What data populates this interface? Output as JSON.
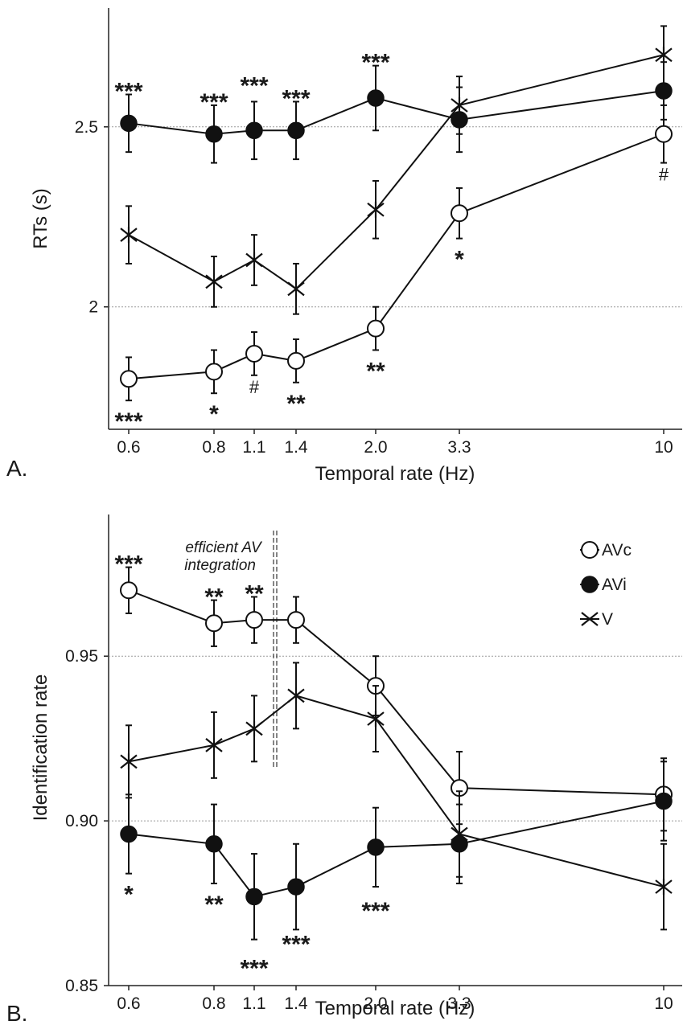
{
  "chart_data": [
    {
      "type": "line",
      "panel_label": "A.",
      "title": "",
      "xlabel": "Temporal rate (Hz)",
      "ylabel": "RTs (s)",
      "x_categories": [
        "0.6",
        "0.8",
        "1.1",
        "1.4",
        "2.0",
        "3.3",
        "10"
      ],
      "ylim": [
        1.66,
        2.83
      ],
      "yticks": [
        "2",
        "2.5"
      ],
      "grid": "dotted horizontal at y ticks",
      "series": [
        {
          "key": "AVi",
          "marker": "filled-circle",
          "values": [
            2.51,
            2.48,
            2.49,
            2.49,
            2.58,
            2.52,
            2.6
          ],
          "err": [
            0.08,
            0.08,
            0.08,
            0.08,
            0.09,
            0.09,
            0.08
          ],
          "labels": [
            "***",
            "***",
            "***",
            "***",
            "***",
            "",
            ""
          ]
        },
        {
          "key": "V",
          "marker": "x-star",
          "values": [
            2.2,
            2.07,
            2.13,
            2.05,
            2.27,
            2.56,
            2.7
          ],
          "err": [
            0.08,
            0.07,
            0.07,
            0.07,
            0.08,
            0.08,
            0.08
          ],
          "labels": [
            "",
            "",
            "",
            "",
            "",
            "",
            ""
          ]
        },
        {
          "key": "AVc",
          "marker": "open-circle",
          "values": [
            1.8,
            1.82,
            1.87,
            1.85,
            1.94,
            2.26,
            2.48
          ],
          "err": [
            0.06,
            0.06,
            0.06,
            0.06,
            0.06,
            0.07,
            0.08
          ],
          "labels": [
            "***",
            "*",
            "#",
            "**",
            "**",
            "*",
            "#"
          ]
        }
      ]
    },
    {
      "type": "line",
      "panel_label": "B.",
      "title": "",
      "xlabel": "Temporal rate (Hz)",
      "ylabel": "Identification rate",
      "x_categories": [
        "0.6",
        "0.8",
        "1.1",
        "1.4",
        "2.0",
        "3.3",
        "10"
      ],
      "ylim": [
        0.85,
        0.993
      ],
      "yticks": [
        "0.85",
        "0.90",
        "0.95"
      ],
      "grid": "dotted horizontal at y ticks",
      "annotation": "efficient AV integration",
      "legend": {
        "placement": "top-right",
        "entries": [
          "AVc",
          "AVi",
          "V"
        ]
      },
      "series": [
        {
          "key": "AVc",
          "marker": "open-circle",
          "values": [
            0.97,
            0.96,
            0.961,
            0.961,
            0.941,
            0.91,
            0.908
          ],
          "err": [
            0.007,
            0.007,
            0.007,
            0.007,
            0.009,
            0.011,
            0.011
          ],
          "labels": [
            "***",
            "**",
            "**",
            "",
            "",
            "",
            ""
          ]
        },
        {
          "key": "V",
          "marker": "x-star",
          "values": [
            0.918,
            0.923,
            0.928,
            0.938,
            0.931,
            0.896,
            0.88
          ],
          "err": [
            0.011,
            0.01,
            0.01,
            0.01,
            0.01,
            0.013,
            0.013
          ],
          "labels": [
            "",
            "",
            "",
            "",
            "",
            "",
            ""
          ]
        },
        {
          "key": "AVi",
          "marker": "filled-circle",
          "values": [
            0.896,
            0.893,
            0.877,
            0.88,
            0.892,
            0.893,
            0.906
          ],
          "err": [
            0.012,
            0.012,
            0.013,
            0.013,
            0.012,
            0.012,
            0.012
          ],
          "labels": [
            "*",
            "**",
            "***",
            "***",
            "***",
            "",
            ""
          ]
        }
      ]
    }
  ]
}
